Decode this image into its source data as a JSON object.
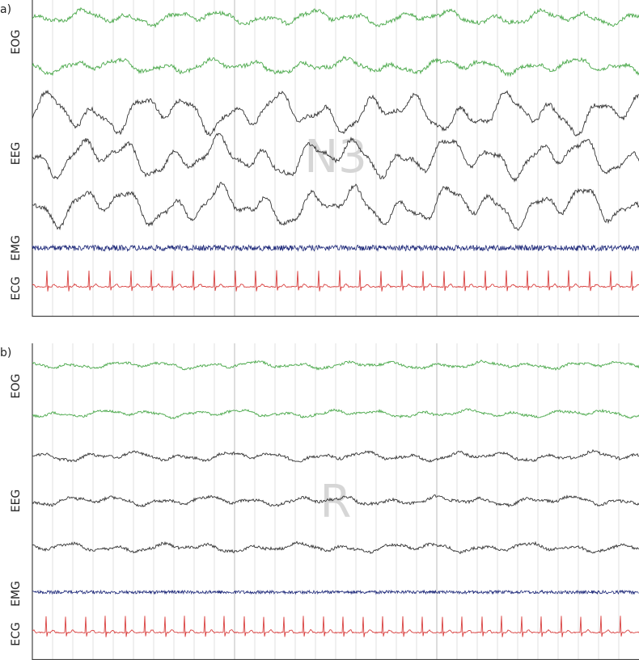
{
  "panels": [
    {
      "label": "a)",
      "stage": "N3",
      "channels": [
        "EOG",
        "EEG",
        "EMG",
        "ECG"
      ]
    },
    {
      "label": "b)",
      "stage": "R",
      "channels": [
        "EOG",
        "EEG",
        "EMG",
        "ECG"
      ]
    }
  ]
}
